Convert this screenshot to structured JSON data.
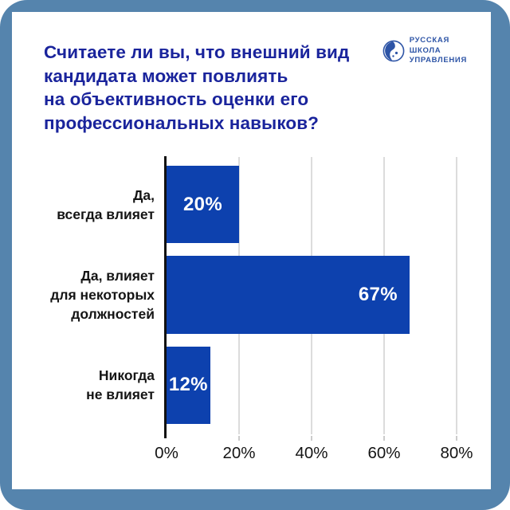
{
  "header": {
    "title_lines": [
      "Считаете ли вы, что внешний вид",
      "кандидата может повлиять",
      "на объективность оценки его",
      "профессиональных навыков?"
    ]
  },
  "logo": {
    "lines": [
      "РУССКАЯ",
      "ШКОЛА",
      "УПРАВЛЕНИЯ"
    ]
  },
  "colors": {
    "frame": "#5584ad",
    "title": "#1a249c",
    "bar": "#0d41ae",
    "logo": "#2d54a6",
    "gridline": "#dcdcdc",
    "axis": "#111111"
  },
  "chart_data": {
    "type": "bar",
    "orientation": "horizontal",
    "title": "Считаете ли вы, что внешний вид кандидата может повлиять на объективность оценки его профессиональных навыков?",
    "categories": [
      "Да,\nвсегда влияет",
      "Да, влияет\nдля некоторых\nдолжностей",
      "Никогда\nне влияет"
    ],
    "values": [
      20,
      67,
      12
    ],
    "value_labels": [
      "20%",
      "67%",
      "12%"
    ],
    "xticks": [
      "0%",
      "20%",
      "40%",
      "60%",
      "80%"
    ],
    "xlim": [
      0,
      80
    ],
    "grid": true,
    "legend": false,
    "bar_color": "#0d41ae"
  }
}
